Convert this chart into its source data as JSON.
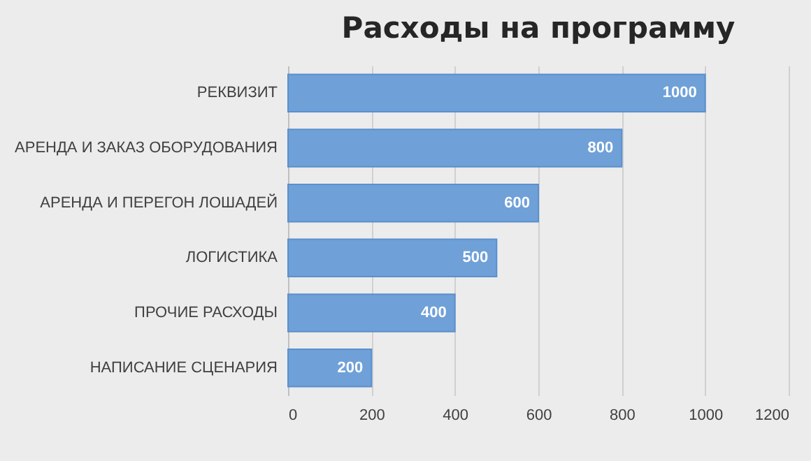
{
  "chart_data": {
    "type": "bar",
    "orientation": "horizontal",
    "title": "Расходы на программу",
    "categories": [
      "РЕКВИЗИТ",
      "АРЕНДА И ЗАКАЗ ОБОРУДОВАНИЯ",
      "АРЕНДА И ПЕРЕГОН ЛОШАДЕЙ",
      "ЛОГИСТИКА",
      "ПРОЧИЕ РАСХОДЫ",
      "НАПИСАНИЕ СЦЕНАРИЯ"
    ],
    "values": [
      1000,
      800,
      600,
      500,
      400,
      200
    ],
    "color": "#6fa0d8",
    "xlim": [
      0,
      1200
    ],
    "xticks": [
      0,
      200,
      400,
      600,
      800,
      1000,
      1200
    ],
    "grid": "x",
    "data_labels": true
  }
}
